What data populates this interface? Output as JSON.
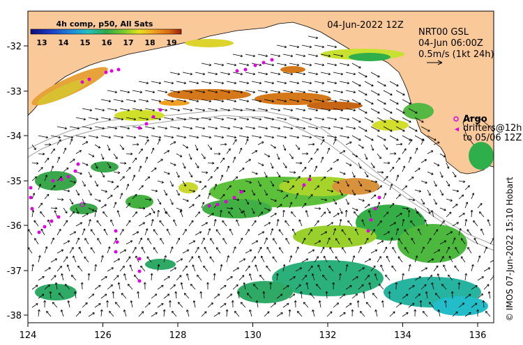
{
  "map": {
    "date_label": "04-Jun-2022 12Z",
    "product": {
      "line1": "NRT00 GSL",
      "line2": "04-Jun 06:00Z",
      "line3": "0.5m/s (1kt 24h)"
    },
    "colorbar": {
      "title": "4h comp, p50, All Sats",
      "ticks": [
        "13",
        "14",
        "15",
        "16",
        "17",
        "18",
        "19"
      ],
      "range": [
        12.5,
        19.5
      ],
      "colors": [
        "#0c0c7a",
        "#1d3fc8",
        "#1f8fd8",
        "#23c3c0",
        "#2ea84a",
        "#7ccc2a",
        "#e8e21e",
        "#f0a020",
        "#d86a10",
        "#9b1f0c"
      ]
    },
    "legend": {
      "argo_label": "Argo",
      "drifters_label": "drifters@12h",
      "drifters_to": "to 05/06 12Z"
    },
    "credit": "© IMOS 07-Jun-2022 15:10 Hobart",
    "lon_ticks": [
      "124",
      "126",
      "128",
      "130",
      "132",
      "134",
      "136"
    ],
    "lat_ticks": [
      "-32",
      "-33",
      "-34",
      "-35",
      "-36",
      "-37",
      "-38"
    ],
    "colors": {
      "land": "#f9c99a",
      "argo": "#e000e0",
      "bathymetry": "#a0a0a0"
    }
  }
}
